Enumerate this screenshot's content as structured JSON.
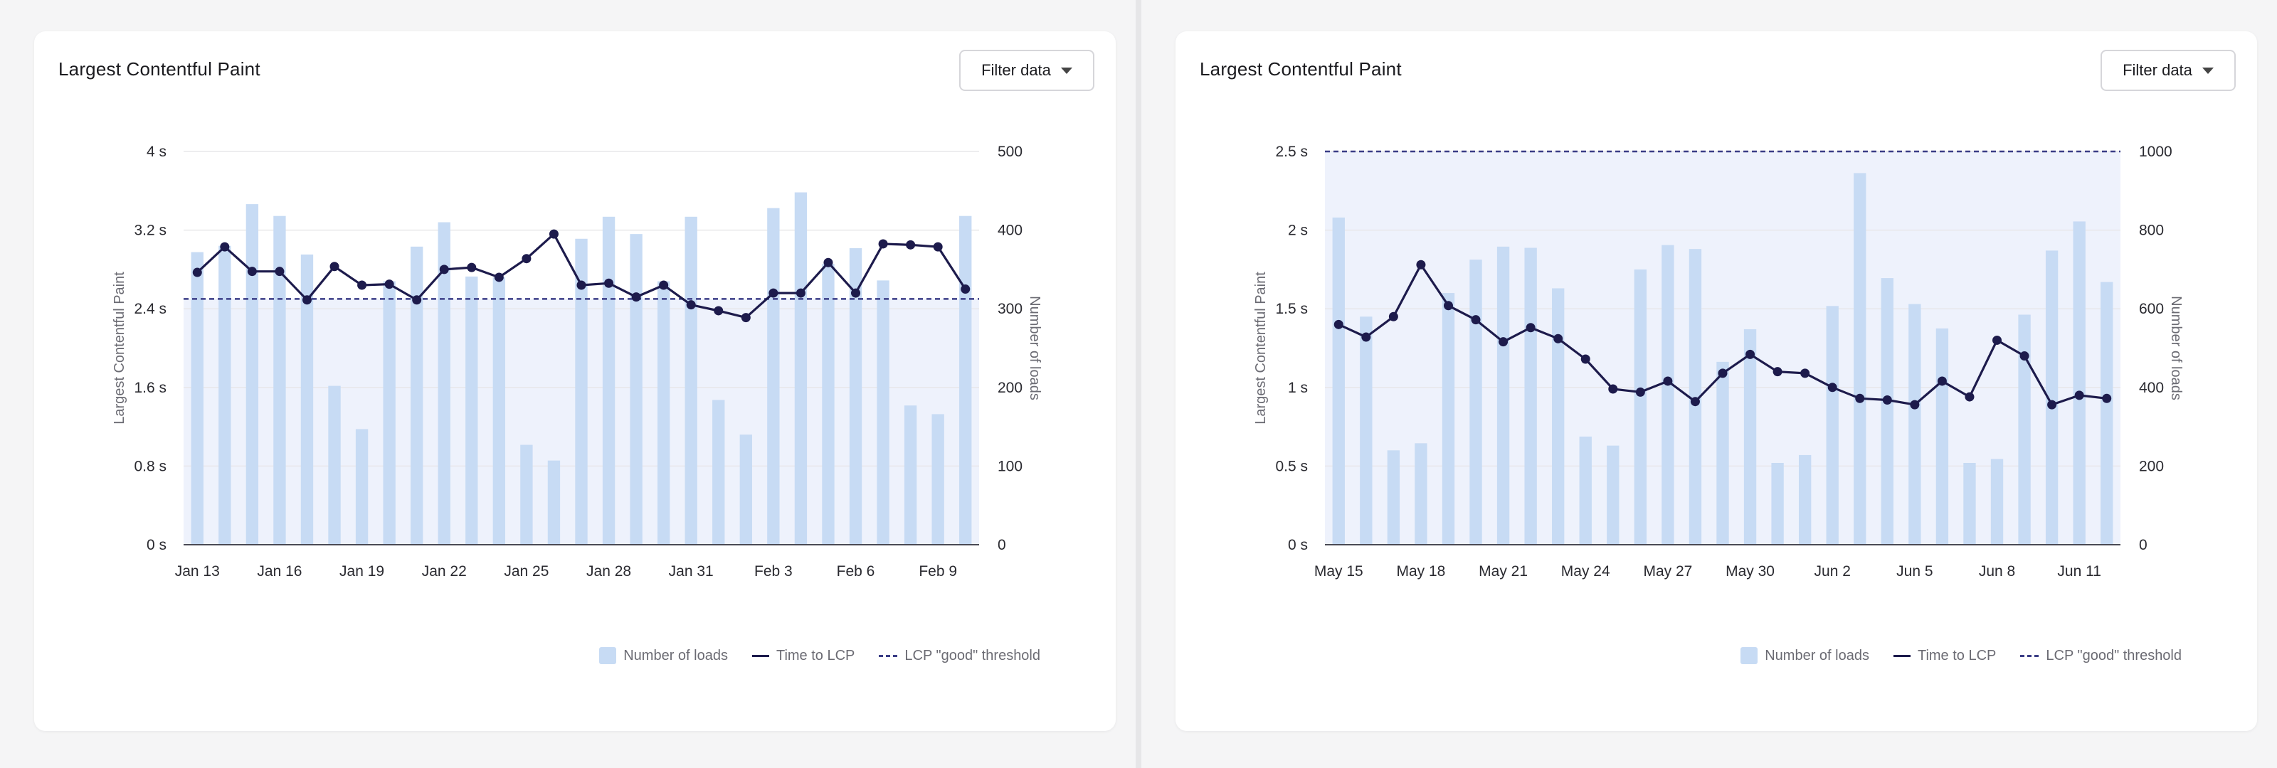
{
  "colors": {
    "bar": "#c7dbf4",
    "line": "#1d1b4c",
    "threshold": "#3a3d86",
    "band": "#eef2fc",
    "grid": "#e7e7ea",
    "tick_text": "#2a2a30",
    "axis_title": "#6b6b73"
  },
  "panels": [
    {
      "title": "Largest Contentful Paint",
      "filter_label": "Filter data",
      "legend": {
        "bars": "Number of loads",
        "line": "Time to LCP",
        "threshold": "LCP \"good\" threshold"
      },
      "chart_data": {
        "type": "bar",
        "title": "Largest Contentful Paint",
        "ylabel": "Largest Contentful Paint",
        "y2label": "Number of loads",
        "ylim": [
          0,
          4
        ],
        "y2lim": [
          0,
          500
        ],
        "y_ticks": [
          "0 s",
          "0.8 s",
          "1.6 s",
          "2.4 s",
          "3.2 s",
          "4 s"
        ],
        "y2_ticks": [
          "0",
          "100",
          "200",
          "300",
          "400",
          "500"
        ],
        "threshold": 2.5,
        "x_labels": [
          "Jan 13",
          "Jan 16",
          "Jan 19",
          "Jan 22",
          "Jan 25",
          "Jan 28",
          "Jan 31",
          "Feb 3",
          "Feb 6",
          "Feb 9"
        ],
        "label_every": 3,
        "categories": [
          "Jan 13",
          "Jan 14",
          "Jan 15",
          "Jan 16",
          "Jan 17",
          "Jan 18",
          "Jan 19",
          "Jan 20",
          "Jan 21",
          "Jan 22",
          "Jan 23",
          "Jan 24",
          "Jan 25",
          "Jan 26",
          "Jan 27",
          "Jan 28",
          "Jan 29",
          "Jan 30",
          "Jan 31",
          "Feb 1",
          "Feb 2",
          "Feb 3",
          "Feb 4",
          "Feb 5",
          "Feb 6",
          "Feb 7",
          "Feb 8",
          "Feb 9",
          "Feb 10"
        ],
        "series": [
          {
            "name": "Number of loads",
            "axis": "right",
            "kind": "bar",
            "values": [
              372,
              380,
              433,
              418,
              369,
              202,
              147,
              335,
              379,
              410,
              341,
              340,
              127,
              107,
              389,
              417,
              395,
              335,
              417,
              184,
              140,
              428,
              448,
              357,
              377,
              336,
              177,
              166,
              418
            ]
          },
          {
            "name": "Time to LCP",
            "axis": "left",
            "kind": "line",
            "values": [
              2.77,
              3.03,
              2.78,
              2.78,
              2.49,
              2.83,
              2.64,
              2.65,
              2.49,
              2.8,
              2.82,
              2.72,
              2.91,
              3.16,
              2.64,
              2.66,
              2.52,
              2.64,
              2.44,
              2.38,
              2.31,
              2.56,
              2.56,
              2.87,
              2.56,
              3.06,
              3.05,
              3.03,
              2.6
            ]
          }
        ]
      }
    },
    {
      "title": "Largest Contentful Paint",
      "filter_label": "Filter data",
      "legend": {
        "bars": "Number of loads",
        "line": "Time to LCP",
        "threshold": "LCP \"good\" threshold"
      },
      "chart_data": {
        "type": "bar",
        "title": "Largest Contentful Paint",
        "ylabel": "Largest Contentful Paint",
        "y2label": "Number of loads",
        "ylim": [
          0,
          2.5
        ],
        "y2lim": [
          0,
          1000
        ],
        "y_ticks": [
          "0 s",
          "0.5 s",
          "1 s",
          "1.5 s",
          "2 s",
          "2.5 s"
        ],
        "y2_ticks": [
          "0",
          "200",
          "400",
          "600",
          "800",
          "1000"
        ],
        "threshold": 2.5,
        "x_labels": [
          "May 15",
          "May 18",
          "May 21",
          "May 24",
          "May 27",
          "May 30",
          "Jun 2",
          "Jun 5",
          "Jun 8",
          "Jun 11"
        ],
        "label_every": 3,
        "categories": [
          "May 15",
          "May 16",
          "May 17",
          "May 18",
          "May 19",
          "May 20",
          "May 21",
          "May 22",
          "May 23",
          "May 24",
          "May 25",
          "May 26",
          "May 27",
          "May 28",
          "May 29",
          "May 30",
          "May 31",
          "Jun 1",
          "Jun 2",
          "Jun 3",
          "Jun 4",
          "Jun 5",
          "Jun 6",
          "Jun 7",
          "Jun 8",
          "Jun 9",
          "Jun 10",
          "Jun 11",
          "Jun 12"
        ],
        "series": [
          {
            "name": "Number of loads",
            "axis": "right",
            "kind": "bar",
            "values": [
              832,
              580,
              240,
              258,
              640,
              725,
              758,
              755,
              652,
              275,
              252,
              700,
              762,
              752,
              465,
              548,
              208,
              228,
              607,
              945,
              678,
              612,
              550,
              208,
              218,
              585,
              748,
              822,
              668
            ]
          },
          {
            "name": "Time to LCP",
            "axis": "left",
            "kind": "line",
            "values": [
              1.4,
              1.32,
              1.45,
              1.78,
              1.52,
              1.43,
              1.29,
              1.38,
              1.31,
              1.18,
              0.99,
              0.97,
              1.04,
              0.91,
              1.09,
              1.21,
              1.1,
              1.09,
              1.0,
              0.93,
              0.92,
              0.89,
              1.04,
              0.94,
              1.3,
              1.2,
              0.89,
              0.95,
              0.93
            ]
          }
        ]
      }
    }
  ]
}
